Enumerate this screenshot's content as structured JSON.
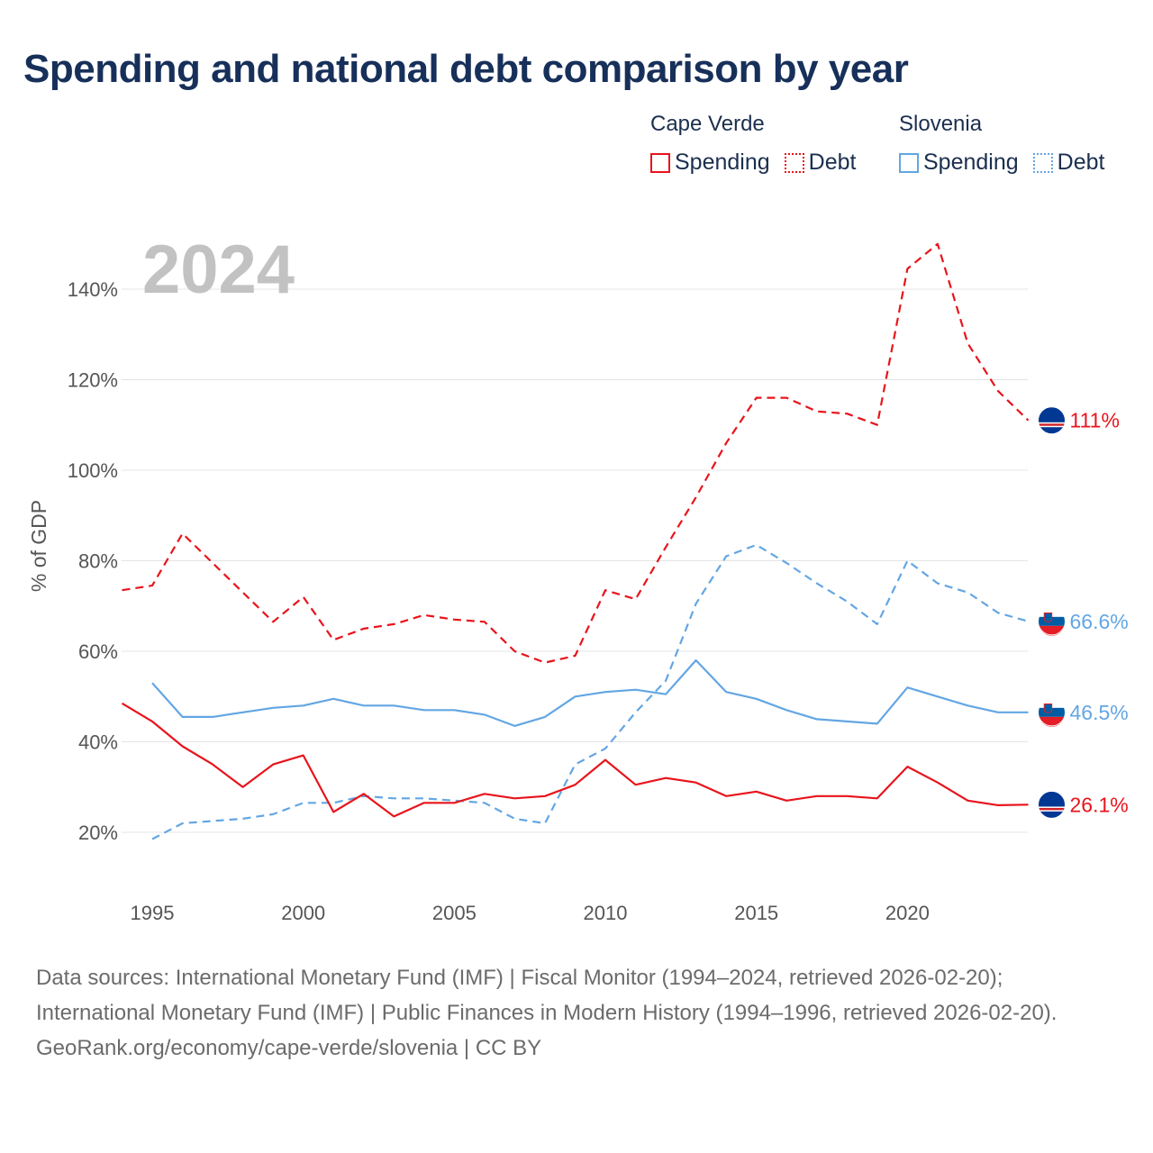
{
  "title": "Spending and national debt comparison by year",
  "legend": {
    "groups": [
      {
        "country": "Cape Verde",
        "color": "#e8141c",
        "items": [
          {
            "label": "Spending",
            "style": "solid"
          },
          {
            "label": "Debt",
            "style": "dotted"
          }
        ]
      },
      {
        "country": "Slovenia",
        "color": "#63a6e3",
        "items": [
          {
            "label": "Spending",
            "style": "solid"
          },
          {
            "label": "Debt",
            "style": "dotted"
          }
        ]
      }
    ]
  },
  "footer": {
    "sources": "Data sources: International Monetary Fund (IMF) | Fiscal Monitor (1994–2024, retrieved 2026-02-20); International Monetary Fund (IMF) | Public Finances in Modern History (1994–1996, retrieved 2026-02-20).",
    "credit": "GeoRank.org/economy/cape-verde/slovenia | CC BY"
  },
  "chart_data": {
    "type": "line",
    "year_label": "2024",
    "ylabel": "% of GDP",
    "xlabel": "",
    "xlim": [
      1994,
      2024
    ],
    "ylim": [
      10,
      150
    ],
    "x_ticks": [
      1995,
      2000,
      2005,
      2010,
      2015,
      2020
    ],
    "x_tick_labels": [
      "1995",
      "2000",
      "2005",
      "2010",
      "2015",
      "2020"
    ],
    "y_ticks": [
      20,
      40,
      60,
      80,
      100,
      120,
      140
    ],
    "y_tick_labels": [
      "20%",
      "40%",
      "60%",
      "80%",
      "100%",
      "120%",
      "140%"
    ],
    "grid": true,
    "series": [
      {
        "name": "Cape Verde Debt",
        "country": "Cape Verde",
        "metric": "Debt",
        "color": "#e8141c",
        "dashed": true,
        "flag": "cape-verde-flag-icon",
        "end_label": "111%",
        "points": [
          [
            1994,
            73.5
          ],
          [
            1995,
            74.5
          ],
          [
            1996,
            86
          ],
          [
            1997,
            79.5
          ],
          [
            1998,
            73
          ],
          [
            1999,
            66.5
          ],
          [
            2000,
            72
          ],
          [
            2001,
            62.5
          ],
          [
            2002,
            65
          ],
          [
            2003,
            66
          ],
          [
            2004,
            68
          ],
          [
            2005,
            67
          ],
          [
            2006,
            66.5
          ],
          [
            2007,
            60
          ],
          [
            2008,
            57.5
          ],
          [
            2009,
            59
          ],
          [
            2010,
            73.5
          ],
          [
            2011,
            71.5
          ],
          [
            2012,
            83
          ],
          [
            2013,
            94
          ],
          [
            2014,
            106
          ],
          [
            2015,
            116
          ],
          [
            2016,
            116
          ],
          [
            2017,
            113
          ],
          [
            2018,
            112.5
          ],
          [
            2019,
            110
          ],
          [
            2020,
            144.5
          ],
          [
            2021,
            150
          ],
          [
            2022,
            128
          ],
          [
            2023,
            117.5
          ],
          [
            2024,
            111
          ]
        ]
      },
      {
        "name": "Slovenia Debt",
        "country": "Slovenia",
        "metric": "Debt",
        "color": "#63a6e3",
        "dashed": true,
        "flag": "slovenia-flag-icon",
        "end_label": "66.6%",
        "points": [
          [
            1995,
            18.5
          ],
          [
            1996,
            22
          ],
          [
            1997,
            22.5
          ],
          [
            1998,
            23
          ],
          [
            1999,
            24
          ],
          [
            2000,
            26.5
          ],
          [
            2001,
            26.5
          ],
          [
            2002,
            28
          ],
          [
            2003,
            27.5
          ],
          [
            2004,
            27.5
          ],
          [
            2005,
            27
          ],
          [
            2006,
            26.5
          ],
          [
            2007,
            23
          ],
          [
            2008,
            22
          ],
          [
            2009,
            35
          ],
          [
            2010,
            38.5
          ],
          [
            2011,
            46.5
          ],
          [
            2012,
            53.5
          ],
          [
            2013,
            70.5
          ],
          [
            2014,
            81
          ],
          [
            2015,
            83.5
          ],
          [
            2016,
            79.5
          ],
          [
            2017,
            75
          ],
          [
            2018,
            71
          ],
          [
            2019,
            66
          ],
          [
            2020,
            80
          ],
          [
            2021,
            75
          ],
          [
            2022,
            73
          ],
          [
            2023,
            68.5
          ],
          [
            2024,
            66.6
          ]
        ]
      },
      {
        "name": "Slovenia Spending",
        "country": "Slovenia",
        "metric": "Spending",
        "color": "#63a6e3",
        "dashed": false,
        "flag": "slovenia-flag-icon",
        "end_label": "46.5%",
        "points": [
          [
            1995,
            53
          ],
          [
            1996,
            45.5
          ],
          [
            1997,
            45.5
          ],
          [
            1998,
            46.5
          ],
          [
            1999,
            47.5
          ],
          [
            2000,
            48
          ],
          [
            2001,
            49.5
          ],
          [
            2002,
            48
          ],
          [
            2003,
            48
          ],
          [
            2004,
            47
          ],
          [
            2005,
            47
          ],
          [
            2006,
            46
          ],
          [
            2007,
            43.5
          ],
          [
            2008,
            45.5
          ],
          [
            2009,
            50
          ],
          [
            2010,
            51
          ],
          [
            2011,
            51.5
          ],
          [
            2012,
            50.5
          ],
          [
            2013,
            58
          ],
          [
            2014,
            51
          ],
          [
            2015,
            49.5
          ],
          [
            2016,
            47
          ],
          [
            2017,
            45
          ],
          [
            2018,
            44.5
          ],
          [
            2019,
            44
          ],
          [
            2020,
            52
          ],
          [
            2021,
            50
          ],
          [
            2022,
            48
          ],
          [
            2023,
            46.5
          ],
          [
            2024,
            46.5
          ]
        ]
      },
      {
        "name": "Cape Verde Spending",
        "country": "Cape Verde",
        "metric": "Spending",
        "color": "#e8141c",
        "dashed": false,
        "flag": "cape-verde-flag-icon",
        "end_label": "26.1%",
        "points": [
          [
            1994,
            48.5
          ],
          [
            1995,
            44.5
          ],
          [
            1996,
            39
          ],
          [
            1997,
            35
          ],
          [
            1998,
            30
          ],
          [
            1999,
            35
          ],
          [
            2000,
            37
          ],
          [
            2001,
            24.5
          ],
          [
            2002,
            28.5
          ],
          [
            2003,
            23.5
          ],
          [
            2004,
            26.5
          ],
          [
            2005,
            26.5
          ],
          [
            2006,
            28.5
          ],
          [
            2007,
            27.5
          ],
          [
            2008,
            28
          ],
          [
            2009,
            30.5
          ],
          [
            2010,
            36
          ],
          [
            2011,
            30.5
          ],
          [
            2012,
            32
          ],
          [
            2013,
            31
          ],
          [
            2014,
            28
          ],
          [
            2015,
            29
          ],
          [
            2016,
            27
          ],
          [
            2017,
            28
          ],
          [
            2018,
            28
          ],
          [
            2019,
            27.5
          ],
          [
            2020,
            34.5
          ],
          [
            2021,
            31
          ],
          [
            2022,
            27
          ],
          [
            2023,
            26
          ],
          [
            2024,
            26.1
          ]
        ]
      }
    ]
  }
}
